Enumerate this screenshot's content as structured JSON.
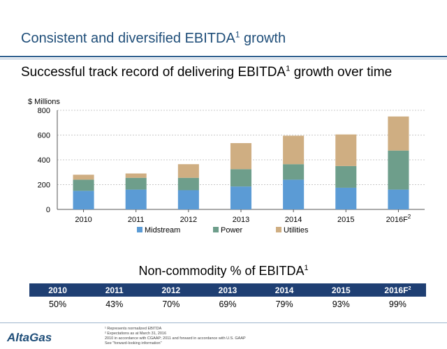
{
  "header": {
    "title": "Consistent and diversified EBITDA",
    "title_sup": "1",
    "title_tail": " growth",
    "subtitle": "Successful track record of delivering EBITDA",
    "subtitle_sup": "1",
    "subtitle_tail": " growth over time"
  },
  "chart_data": {
    "type": "bar",
    "stacked": true,
    "ylabel": "$ Millions",
    "ylim": [
      0,
      800
    ],
    "yticks": [
      0,
      200,
      400,
      600,
      800
    ],
    "grid": true,
    "legend_position": "bottom",
    "categories": [
      "2010",
      "2011",
      "2012",
      "2013",
      "2014",
      "2015",
      "2016F"
    ],
    "category_superscripts": [
      "",
      "",
      "",
      "",
      "",
      "",
      "2"
    ],
    "series": [
      {
        "name": "Midstream",
        "color": "#5b9bd5",
        "values": [
          150,
          160,
          155,
          185,
          240,
          175,
          160
        ]
      },
      {
        "name": "Power",
        "color": "#6e9e8b",
        "values": [
          90,
          95,
          100,
          140,
          125,
          175,
          315
        ]
      },
      {
        "name": "Utilities",
        "color": "#cfae82",
        "values": [
          40,
          35,
          110,
          210,
          230,
          255,
          275
        ]
      }
    ]
  },
  "non_commodity": {
    "title": "Non-commodity % of EBITDA",
    "title_sup": "1",
    "years": [
      "2010",
      "2011",
      "2012",
      "2013",
      "2014",
      "2015",
      "2016F"
    ],
    "year_sups": [
      "",
      "",
      "",
      "",
      "",
      "",
      "2"
    ],
    "values": [
      "50%",
      "43%",
      "70%",
      "69%",
      "79%",
      "93%",
      "99%"
    ]
  },
  "footer": {
    "logo": "AltaGas",
    "notes": [
      "¹ Represents normalized EBITDA",
      "² Expectations as at March 31, 2016",
      "2010 in accordance with CGAAP; 2011 and forward in accordance with U.S. GAAP",
      "See \"forward-looking information\""
    ]
  }
}
